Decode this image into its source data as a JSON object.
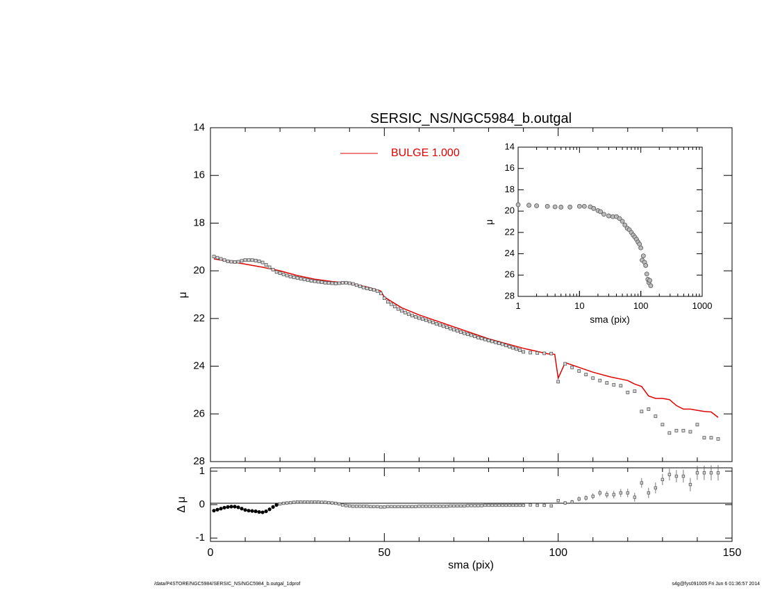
{
  "footer": {
    "left": "/data/P4STORE/NGC5984/SERSIC_NS/NGC5984_b.outgal_1dprof",
    "right": "s4g@fys091005  Fri Jun  6 01:36:57 2014"
  },
  "colors": {
    "model": "#e00000",
    "data": "#555555",
    "axis": "#000000"
  },
  "chart_data": [
    {
      "name": "main-profile",
      "type": "scatter",
      "title": "SERSIC_NS/NGC5984_b.outgal",
      "ylabel": "μ",
      "xlim": [
        0,
        150
      ],
      "ylim": [
        28,
        14
      ],
      "yticks": [
        14,
        16,
        18,
        20,
        22,
        24,
        26,
        28
      ],
      "legend": {
        "label": "BULGE  1.000",
        "placement": "top-center",
        "color": "#e00000"
      },
      "series": [
        {
          "role": "data",
          "x": [
            1,
            2,
            3,
            4,
            5,
            6,
            7,
            8,
            9,
            10,
            11,
            12,
            13,
            14,
            15,
            16,
            17,
            18,
            19,
            20,
            21,
            22,
            23,
            24,
            25,
            26,
            27,
            28,
            29,
            30,
            31,
            32,
            33,
            34,
            35,
            36,
            37,
            38,
            39,
            40,
            41,
            42,
            43,
            44,
            45,
            46,
            47,
            48,
            49,
            50,
            51,
            52,
            53,
            54,
            55,
            56,
            57,
            58,
            59,
            60,
            61,
            62,
            63,
            64,
            65,
            66,
            67,
            68,
            69,
            70,
            71,
            72,
            73,
            74,
            75,
            76,
            77,
            78,
            79,
            80,
            81,
            82,
            83,
            84,
            85,
            86,
            87,
            88,
            89,
            90,
            92,
            94,
            96,
            98,
            100,
            102,
            104,
            106,
            108,
            110,
            112,
            114,
            116,
            118,
            120,
            122,
            124,
            126,
            128,
            130,
            132,
            134,
            136,
            138,
            140,
            142,
            144,
            146
          ],
          "y": [
            19.4,
            19.45,
            19.5,
            19.55,
            19.6,
            19.62,
            19.63,
            19.62,
            19.58,
            19.55,
            19.55,
            19.55,
            19.57,
            19.6,
            19.65,
            19.75,
            19.85,
            19.95,
            20.05,
            20.1,
            20.15,
            20.2,
            20.24,
            20.27,
            20.3,
            20.33,
            20.36,
            20.39,
            20.42,
            20.44,
            20.46,
            20.48,
            20.5,
            20.51,
            20.52,
            20.53,
            20.52,
            20.5,
            20.5,
            20.52,
            20.55,
            20.6,
            20.65,
            20.7,
            20.74,
            20.77,
            20.8,
            20.85,
            20.95,
            21.15,
            21.3,
            21.4,
            21.5,
            21.6,
            21.68,
            21.75,
            21.82,
            21.88,
            21.93,
            21.98,
            22.02,
            22.07,
            22.12,
            22.17,
            22.22,
            22.27,
            22.32,
            22.37,
            22.42,
            22.47,
            22.52,
            22.57,
            22.62,
            22.66,
            22.7,
            22.75,
            22.8,
            22.84,
            22.88,
            22.92,
            22.96,
            23.0,
            23.04,
            23.08,
            23.13,
            23.18,
            23.23,
            23.28,
            23.33,
            23.4,
            23.43,
            23.45,
            23.46,
            23.47,
            24.65,
            23.9,
            24.05,
            24.2,
            24.35,
            24.5,
            24.6,
            24.7,
            24.78,
            24.82,
            25.1,
            25.05,
            25.9,
            25.8,
            26.1,
            26.45,
            26.8,
            26.7,
            26.7,
            26.75,
            26.45,
            27.0,
            27.0,
            27.05
          ]
        },
        {
          "role": "model",
          "name": "BULGE  1.000",
          "x": [
            1,
            5,
            10,
            15,
            20,
            25,
            30,
            35,
            40,
            45,
            49,
            50,
            55,
            60,
            70,
            80,
            90,
            97,
            99,
            100,
            102,
            105,
            110,
            115,
            120,
            122,
            124,
            126,
            128,
            130,
            132,
            134,
            136,
            138,
            140,
            142,
            144,
            146
          ],
          "y": [
            19.5,
            19.6,
            19.72,
            19.85,
            20.0,
            20.2,
            20.35,
            20.45,
            20.52,
            20.68,
            20.85,
            21.1,
            21.55,
            21.85,
            22.35,
            22.85,
            23.25,
            23.48,
            23.5,
            24.5,
            23.85,
            24.0,
            24.25,
            24.45,
            24.6,
            24.75,
            24.85,
            25.25,
            25.35,
            25.35,
            25.4,
            25.65,
            25.8,
            25.8,
            25.85,
            25.9,
            25.92,
            26.15
          ]
        }
      ]
    },
    {
      "name": "inset-log-profile",
      "type": "scatter",
      "xlabel": "sma (pix)",
      "ylabel": "μ",
      "xscale": "log",
      "xlim": [
        1,
        1000
      ],
      "xticks": [
        "1",
        "10",
        "100",
        "1000"
      ],
      "ylim": [
        28,
        14
      ],
      "yticks": [
        14,
        16,
        18,
        20,
        22,
        24,
        26,
        28
      ],
      "series": [
        {
          "role": "data",
          "x": [
            1.0,
            1.5,
            2,
            3,
            4,
            5,
            7,
            10,
            12,
            15,
            17,
            20,
            22,
            25,
            30,
            35,
            40,
            45,
            50,
            55,
            60,
            65,
            70,
            75,
            80,
            85,
            90,
            95,
            100,
            105,
            110,
            115,
            120,
            125,
            130,
            135,
            140,
            145
          ],
          "y": [
            19.4,
            19.45,
            19.5,
            19.55,
            19.6,
            19.63,
            19.62,
            19.55,
            19.55,
            19.6,
            19.75,
            19.95,
            20.05,
            20.3,
            20.45,
            20.52,
            20.52,
            20.7,
            20.95,
            21.3,
            21.6,
            21.75,
            22.0,
            22.25,
            22.45,
            22.65,
            22.9,
            23.1,
            23.45,
            24.6,
            24.2,
            24.8,
            25.1,
            25.9,
            26.4,
            26.7,
            26.5,
            27.0
          ]
        }
      ]
    },
    {
      "name": "residuals",
      "type": "scatter",
      "xlabel": "sma (pix)",
      "ylabel": "Δ μ",
      "xlim": [
        0,
        150
      ],
      "xticks": [
        0,
        50,
        100,
        150
      ],
      "ylim": [
        -1.1,
        1.1
      ],
      "yticks": [
        -1,
        0,
        1
      ],
      "series": [
        {
          "role": "residual",
          "x": [
            1,
            2,
            3,
            4,
            5,
            6,
            7,
            8,
            9,
            10,
            11,
            12,
            13,
            14,
            15,
            16,
            17,
            18,
            19,
            20,
            21,
            22,
            23,
            24,
            25,
            26,
            27,
            28,
            29,
            30,
            31,
            32,
            33,
            34,
            35,
            36,
            37,
            38,
            39,
            40,
            41,
            42,
            43,
            44,
            45,
            46,
            47,
            48,
            49,
            50,
            51,
            52,
            53,
            54,
            55,
            56,
            57,
            58,
            59,
            60,
            61,
            62,
            63,
            64,
            65,
            66,
            67,
            68,
            69,
            70,
            71,
            72,
            73,
            74,
            75,
            76,
            77,
            78,
            79,
            80,
            81,
            82,
            83,
            84,
            85,
            86,
            87,
            88,
            89,
            90,
            92,
            94,
            96,
            98,
            100,
            102,
            104,
            106,
            108,
            110,
            112,
            114,
            116,
            118,
            120,
            122,
            124,
            126,
            128,
            130,
            132,
            134,
            136,
            138,
            140,
            142,
            144,
            146
          ],
          "y": [
            -0.18,
            -0.15,
            -0.12,
            -0.09,
            -0.07,
            -0.06,
            -0.06,
            -0.08,
            -0.12,
            -0.16,
            -0.18,
            -0.19,
            -0.2,
            -0.22,
            -0.23,
            -0.2,
            -0.14,
            -0.07,
            -0.01,
            0.02,
            0.04,
            0.05,
            0.06,
            0.07,
            0.08,
            0.08,
            0.08,
            0.08,
            0.08,
            0.08,
            0.08,
            0.07,
            0.07,
            0.06,
            0.05,
            0.04,
            0.02,
            -0.01,
            -0.03,
            -0.04,
            -0.05,
            -0.05,
            -0.05,
            -0.05,
            -0.05,
            -0.06,
            -0.06,
            -0.06,
            -0.07,
            -0.07,
            -0.06,
            -0.06,
            -0.06,
            -0.06,
            -0.06,
            -0.06,
            -0.06,
            -0.06,
            -0.06,
            -0.05,
            -0.05,
            -0.05,
            -0.05,
            -0.05,
            -0.05,
            -0.05,
            -0.05,
            -0.05,
            -0.04,
            -0.04,
            -0.04,
            -0.04,
            -0.04,
            -0.03,
            -0.03,
            -0.03,
            -0.03,
            -0.03,
            -0.02,
            -0.02,
            -0.02,
            -0.02,
            -0.02,
            -0.02,
            -0.02,
            -0.02,
            -0.02,
            -0.02,
            -0.02,
            -0.02,
            -0.01,
            -0.02,
            -0.02,
            -0.04,
            0.12,
            0.05,
            0.08,
            0.17,
            0.2,
            0.25,
            0.35,
            0.3,
            0.3,
            0.35,
            0.35,
            0.22,
            0.65,
            0.35,
            0.5,
            0.75,
            0.9,
            0.85,
            0.85,
            0.6,
            0.95,
            0.95,
            0.95,
            0.95
          ]
        }
      ]
    }
  ]
}
